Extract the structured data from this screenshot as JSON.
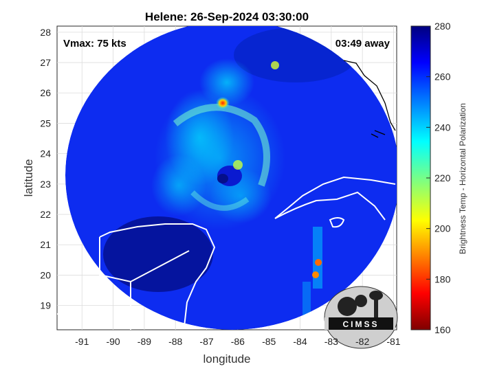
{
  "chart_data": {
    "type": "heatmap",
    "title": "Helene: 26-Sep-2024 03:30:00",
    "xlabel": "longitude",
    "ylabel": "latitude",
    "xlim": [
      -91.8,
      -80.9
    ],
    "ylim": [
      18.2,
      28.2
    ],
    "xticks": [
      "-91",
      "-90",
      "-89",
      "-88",
      "-87",
      "-86",
      "-85",
      "-84",
      "-83",
      "-82",
      "-81"
    ],
    "yticks": [
      "19",
      "20",
      "21",
      "22",
      "23",
      "24",
      "25",
      "26",
      "27",
      "28"
    ],
    "storm_center": {
      "lon": -86.5,
      "lat": 23.1
    },
    "grid": true,
    "annotations": {
      "vmax": "Vmax: 75 kts",
      "time_away": "03:49 away"
    },
    "colorbar": {
      "label": "Brightness Temp - Horizontal Polarization",
      "min": 160,
      "max": 280,
      "ticks": [
        "160",
        "180",
        "200",
        "220",
        "240",
        "260",
        "280"
      ],
      "colormap": "jet"
    },
    "logo_text": "CIMSS"
  },
  "colors": {
    "background": "#0a1fd8",
    "coast": "#ffffff",
    "grid": "#cccccc"
  }
}
